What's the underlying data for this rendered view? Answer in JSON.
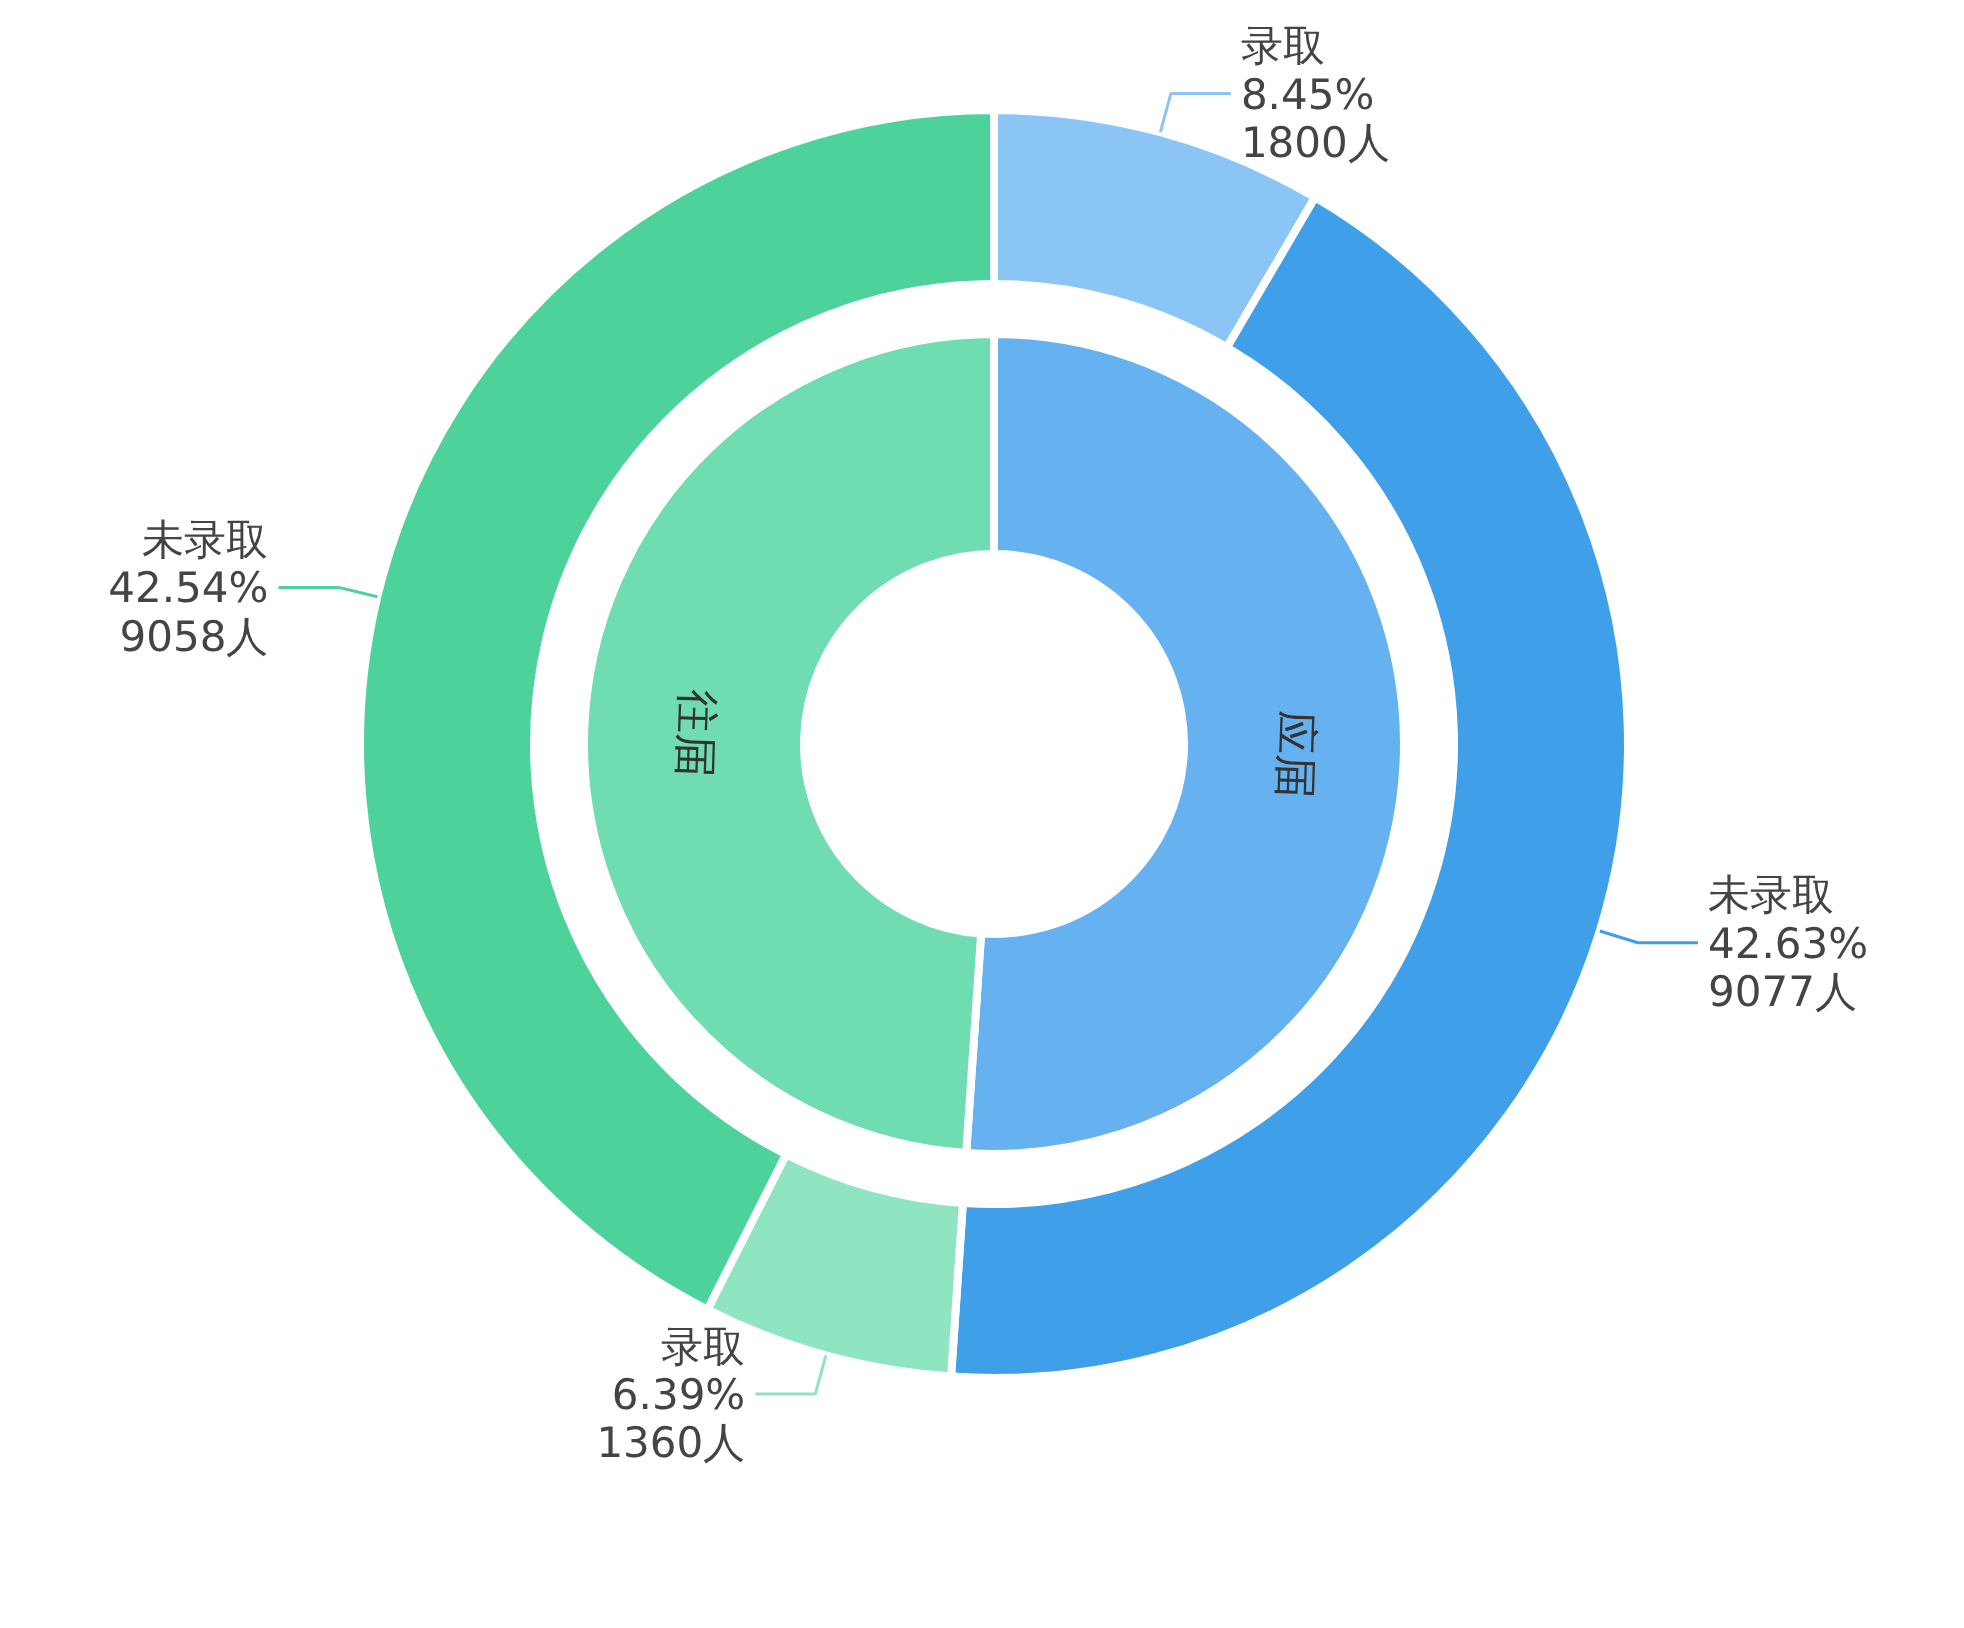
{
  "chart_data": [
    {
      "type": "donut",
      "categories": [
        "应届",
        "往届"
      ],
      "values": [
        51.08,
        48.92
      ],
      "colors": [
        "#66b2f0",
        "#6fdcb1"
      ]
    },
    {
      "type": "donut",
      "categories": [
        "录取",
        "未录取",
        "录取",
        "未录取"
      ],
      "values": [
        1800,
        9077,
        1360,
        9058
      ],
      "colors": [
        "#8bc5f5",
        "#3fa0e9",
        "#8fe4c1",
        "#4dd29c"
      ],
      "value_labels": [
        "8.45%\n1800人",
        "42.63%\n9077人",
        "6.39%\n1360人",
        "42.54%\n9058人"
      ]
    }
  ]
}
